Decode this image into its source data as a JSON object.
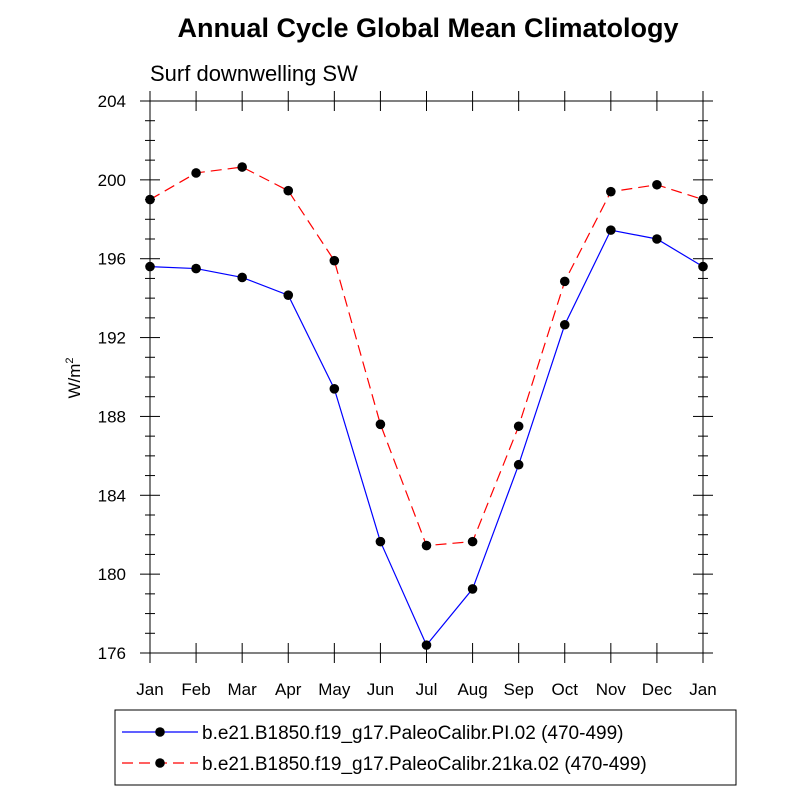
{
  "chart_data": {
    "type": "line",
    "title": "Annual Cycle Global Mean Climatology",
    "subtitle": "Surf downwelling SW",
    "ylabel": {
      "base": "W/m",
      "superscript": "2"
    },
    "xlabel": "",
    "categories": [
      "Jan",
      "Feb",
      "Mar",
      "Apr",
      "May",
      "Jun",
      "Jul",
      "Aug",
      "Sep",
      "Oct",
      "Nov",
      "Dec",
      "Jan"
    ],
    "ylim": [
      176,
      204
    ],
    "yticks": [
      176,
      180,
      184,
      188,
      192,
      196,
      200,
      204
    ],
    "grid": false,
    "legend_position": "bottom",
    "series": [
      {
        "name": "b.e21.B1850.f19_g17.PaleoCalibr.PI.02 (470-499)",
        "color": "#0000ff",
        "dash": "solid",
        "marker": "filled-circle",
        "values": [
          195.6,
          195.5,
          195.05,
          194.15,
          189.4,
          181.65,
          176.4,
          179.25,
          185.55,
          192.65,
          197.45,
          197.0,
          195.6
        ]
      },
      {
        "name": "b.e21.B1850.f19_g17.PaleoCalibr.21ka.02 (470-499)",
        "color": "#ff0000",
        "dash": "dashed",
        "marker": "filled-circle",
        "values": [
          199.0,
          200.35,
          200.65,
          199.45,
          195.9,
          187.6,
          181.45,
          181.65,
          187.5,
          194.85,
          199.4,
          199.75,
          199.0
        ]
      }
    ]
  }
}
